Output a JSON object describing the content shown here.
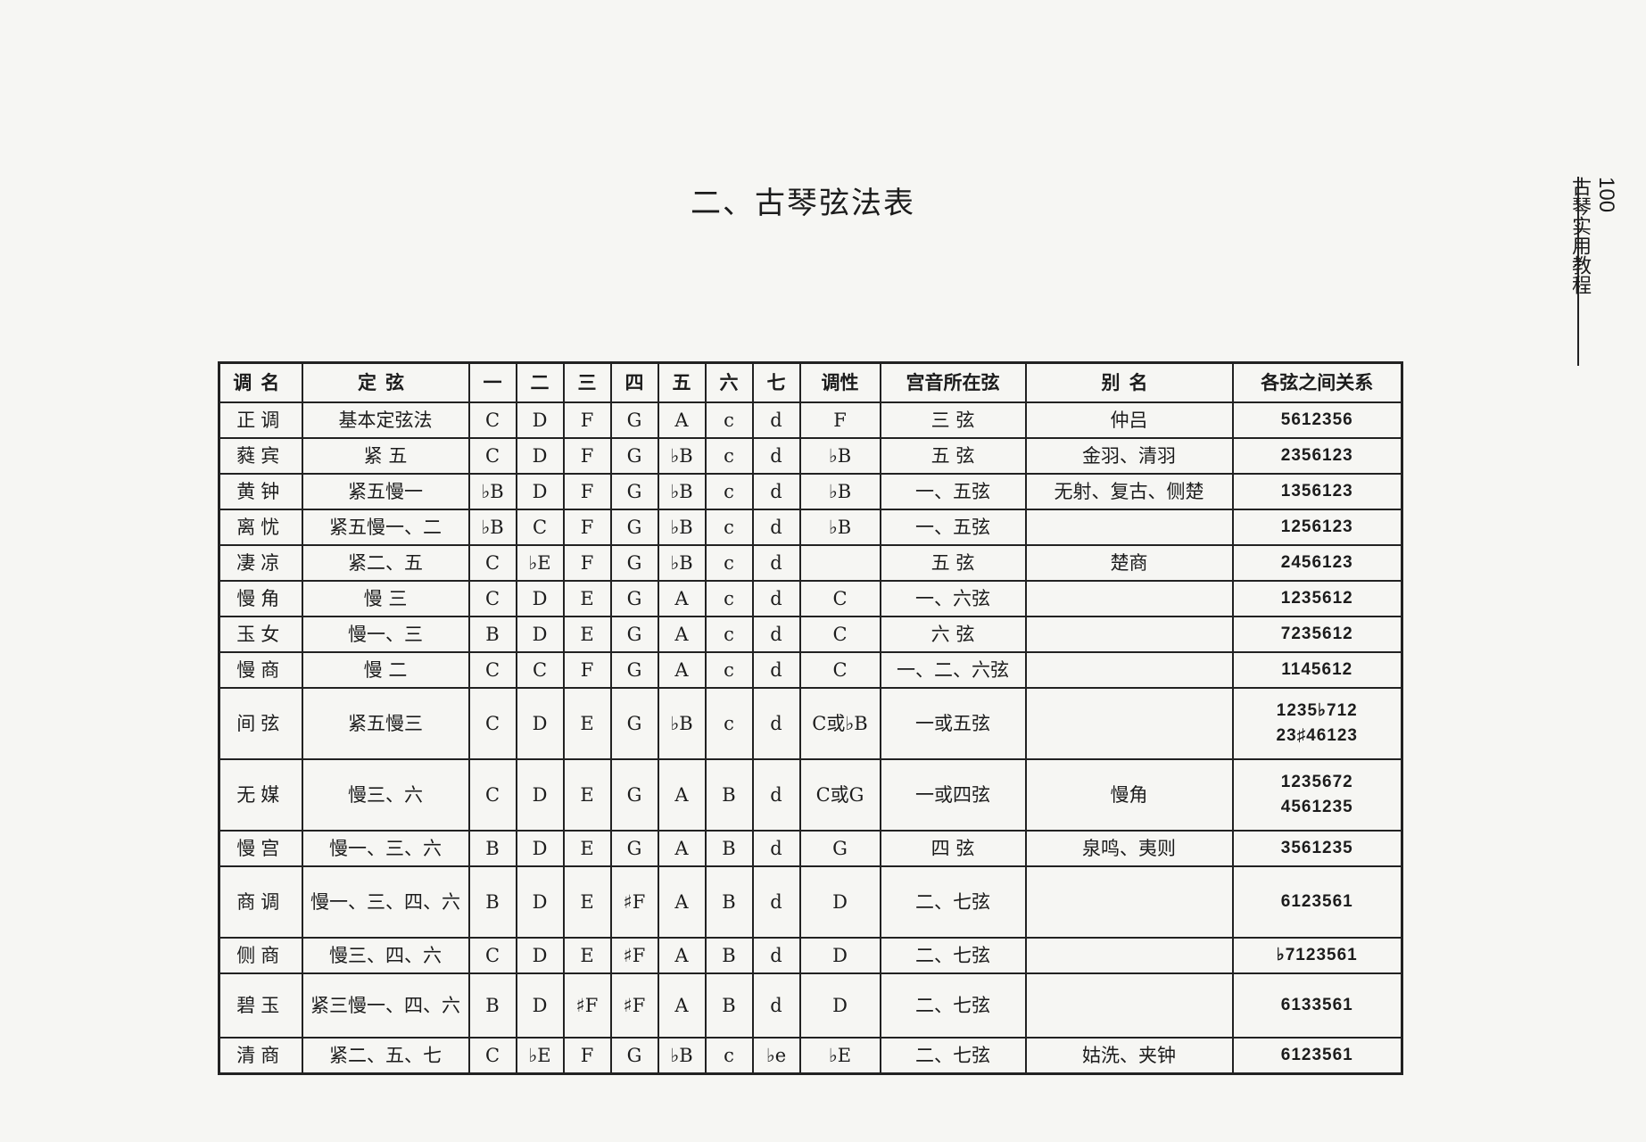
{
  "page": {
    "number": "100",
    "running_header": "古琴实用教程",
    "title": "二、古琴弦法表"
  },
  "table": {
    "headers": [
      "调名",
      "定弦",
      "一",
      "二",
      "三",
      "四",
      "五",
      "六",
      "七",
      "调性",
      "宫音所在弦",
      "别名",
      "各弦之间关系"
    ],
    "rows": [
      {
        "name": "正调",
        "tuning": "基本定弦法",
        "strings": [
          "C",
          "D",
          "F",
          "G",
          "A",
          "c",
          "d"
        ],
        "key": "F",
        "gong": "三 弦",
        "alias": "仲吕",
        "relation": [
          "5612356"
        ]
      },
      {
        "name": "蕤宾",
        "tuning": "紧 五",
        "strings": [
          "C",
          "D",
          "F",
          "G",
          "♭B",
          "c",
          "d"
        ],
        "key": "♭B",
        "gong": "五 弦",
        "alias": "金羽、清羽",
        "relation": [
          "2356123"
        ]
      },
      {
        "name": "黄钟",
        "tuning": "紧五慢一",
        "strings": [
          "♭B",
          "D",
          "F",
          "G",
          "♭B",
          "c",
          "d"
        ],
        "key": "♭B",
        "gong": "一、五弦",
        "alias": "无射、复古、侧楚",
        "relation": [
          "1356123"
        ]
      },
      {
        "name": "离忧",
        "tuning": "紧五慢一、二",
        "strings": [
          "♭B",
          "C",
          "F",
          "G",
          "♭B",
          "c",
          "d"
        ],
        "key": "♭B",
        "gong": "一、五弦",
        "relation": [
          "1256123"
        ]
      },
      {
        "name": "凄凉",
        "tuning": "紧二、五",
        "strings": [
          "C",
          "♭E",
          "F",
          "G",
          "♭B",
          "c",
          "d"
        ],
        "gong": "五 弦",
        "alias": "楚商",
        "relation": [
          "2456123"
        ]
      },
      {
        "name": "慢角",
        "tuning": "慢 三",
        "strings": [
          "C",
          "D",
          "E",
          "G",
          "A",
          "c",
          "d"
        ],
        "key": "C",
        "gong": "一、六弦",
        "relation": [
          "1235612"
        ]
      },
      {
        "name": "玉女",
        "tuning": "慢一、三",
        "strings": [
          "B",
          "D",
          "E",
          "G",
          "A",
          "c",
          "d"
        ],
        "key": "C",
        "gong": "六 弦",
        "relation": [
          "7235612"
        ]
      },
      {
        "name": "慢商",
        "tuning": "慢 二",
        "strings": [
          "C",
          "C",
          "F",
          "G",
          "A",
          "c",
          "d"
        ],
        "key": "C",
        "gong": "一、二、六弦",
        "relation": [
          "1145612"
        ]
      },
      {
        "name": "间弦",
        "tuning": "紧五慢三",
        "strings": [
          "C",
          "D",
          "E",
          "G",
          "♭B",
          "c",
          "d"
        ],
        "key": "C或♭B",
        "gong": "一或五弦",
        "relation": [
          "1235♭712",
          "23♯46123"
        ]
      },
      {
        "name": "无媒",
        "tuning": "慢三、六",
        "strings": [
          "C",
          "D",
          "E",
          "G",
          "A",
          "B",
          "d"
        ],
        "key": "C或G",
        "gong": "一或四弦",
        "alias": "慢角",
        "relation": [
          "1235672",
          "4561235"
        ]
      },
      {
        "name": "慢宫",
        "tuning": "慢一、三、六",
        "strings": [
          "B",
          "D",
          "E",
          "G",
          "A",
          "B",
          "d"
        ],
        "key": "G",
        "gong": "四 弦",
        "alias": "泉鸣、夷则",
        "relation": [
          "3561235"
        ]
      },
      {
        "name": "商调",
        "tuning": "慢一、三、四、六",
        "strings": [
          "B",
          "D",
          "E",
          "♯F",
          "A",
          "B",
          "d"
        ],
        "key": "D",
        "gong": "二、七弦",
        "relation": [
          "6123561"
        ]
      },
      {
        "name": "侧商",
        "tuning": "慢三、四、六",
        "strings": [
          "C",
          "D",
          "E",
          "♯F",
          "A",
          "B",
          "d"
        ],
        "key": "D",
        "gong": "二、七弦",
        "relation": [
          "♭7123561"
        ]
      },
      {
        "name": "碧玉",
        "tuning": "紧三慢一、四、六",
        "strings": [
          "B",
          "D",
          "♯F",
          "♯F",
          "A",
          "B",
          "d"
        ],
        "key": "D",
        "gong": "二、七弦",
        "relation": [
          "6133561"
        ]
      },
      {
        "name": "清商",
        "tuning": "紧二、五、七",
        "strings": [
          "C",
          "♭E",
          "F",
          "G",
          "♭B",
          "c",
          "♭e"
        ],
        "key": "♭E",
        "gong": "二、七弦",
        "alias": "姑洗、夹钟",
        "relation": [
          "6123561"
        ]
      }
    ]
  }
}
